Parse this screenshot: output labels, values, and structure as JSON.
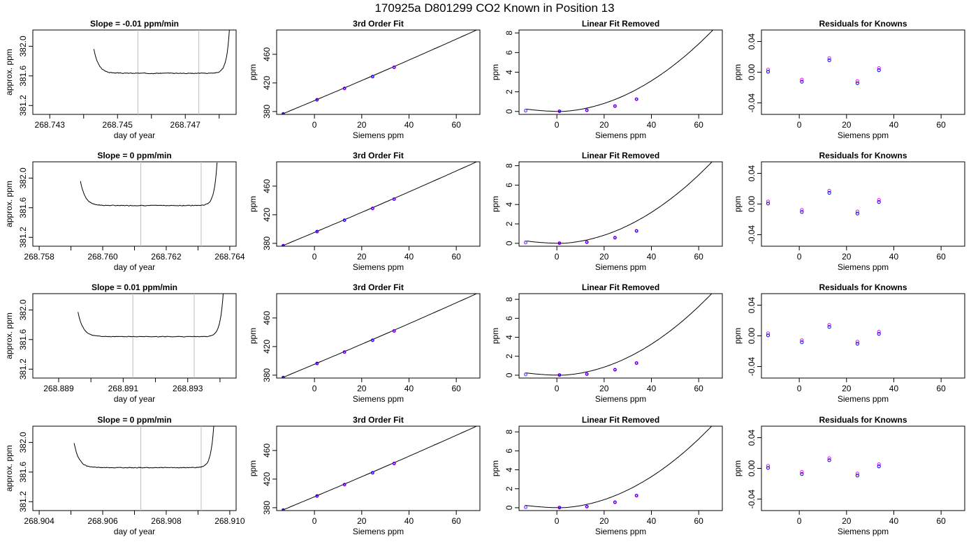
{
  "title": "170925a      D801299   CO2 Known in Position  13",
  "chart_data": [
    {
      "panel": "r1c1",
      "type": "line",
      "title": "Slope =  -0.01  ppm/min",
      "xlabel": "day of year",
      "ylabel": "approx. ppm",
      "xlim": [
        268.7425,
        268.7485
      ],
      "ylim": [
        381.08,
        382.22
      ],
      "xticks": [
        268.743,
        268.745,
        268.747
      ],
      "xtick_minor": [
        268.744,
        268.746,
        268.748
      ],
      "yticks": [
        381.2,
        381.6,
        382.0
      ],
      "xtick_decimals": 3,
      "ytick_decimals": 1,
      "vlines": [
        268.7456,
        268.7474
      ],
      "trace": {
        "t0": 268.7443,
        "t1": 268.7483,
        "base": 381.636,
        "drop": 0.33,
        "rise": 0.58,
        "noise": 0.008,
        "seed": 3
      }
    },
    {
      "panel": "r1c2",
      "type": "line+scatter",
      "title": "3rd Order Fit",
      "xlabel": "Siemens ppm",
      "ylabel": "ppm",
      "xlim": [
        -16,
        70
      ],
      "ylim": [
        376,
        494
      ],
      "xticks": [
        0,
        20,
        40,
        60
      ],
      "yticks": [
        380,
        420,
        460
      ],
      "xtick_decimals": 0,
      "ytick_decimals": 0,
      "curve": {
        "a": 395.3,
        "b": 1.39,
        "c": 0.0007,
        "d": 3e-08,
        "x0": -13.5,
        "x1": 68.5
      },
      "points": {
        "x": [
          -13.2,
          1.1,
          12.7,
          24.6,
          33.7
        ],
        "y": [
          376.8,
          396.5,
          412.4,
          428.9,
          441.9
        ]
      }
    },
    {
      "panel": "r1c3",
      "type": "line+scatter",
      "title": "Linear Fit Removed",
      "xlabel": "Siemens ppm",
      "ylabel": "ppm",
      "xlim": [
        -16,
        70
      ],
      "ylim": [
        -0.3,
        8.3
      ],
      "xticks": [
        0,
        20,
        40,
        60
      ],
      "yticks": [
        0,
        2,
        4,
        6,
        8
      ],
      "xtick_decimals": 0,
      "ytick_decimals": 0,
      "curve": {
        "vertex": 2.5,
        "k": 0.00182,
        "p": 2.0,
        "x0": -13.5,
        "x1": 68.5
      },
      "points": {
        "x": [
          -13.2,
          1.1,
          12.7,
          24.6,
          33.7
        ],
        "y": [
          0.08,
          0.02,
          0.12,
          0.55,
          1.25
        ]
      }
    },
    {
      "panel": "r1c4",
      "type": "scatter",
      "title": "Residuals for Knowns",
      "xlabel": "Siemens ppm",
      "ylabel": "ppm",
      "xlim": [
        -16,
        70
      ],
      "ylim": [
        -0.055,
        0.055
      ],
      "xticks": [
        0,
        20,
        40,
        60
      ],
      "yticks": [
        -0.04,
        0.0,
        0.04
      ],
      "xtick_decimals": 0,
      "ytick_decimals": 2,
      "points": {
        "x": [
          -13.2,
          1.1,
          12.7,
          24.6,
          33.7
        ],
        "y": [
          0.002,
          -0.011,
          0.017,
          -0.013,
          0.004
        ]
      }
    },
    {
      "panel": "r2c1",
      "type": "line",
      "title": "Slope =  0  ppm/min",
      "xlabel": "day of year",
      "ylabel": "approx. ppm",
      "xlim": [
        268.7578,
        268.7642
      ],
      "ylim": [
        381.08,
        382.22
      ],
      "xticks": [
        268.758,
        268.76,
        268.762,
        268.764
      ],
      "xtick_minor": [
        268.759,
        268.761,
        268.763
      ],
      "yticks": [
        381.2,
        381.6,
        382.0
      ],
      "xtick_decimals": 3,
      "ytick_decimals": 1,
      "vlines": [
        268.7612,
        268.7631
      ],
      "trace": {
        "t0": 268.7593,
        "t1": 268.7636,
        "base": 381.63,
        "drop": 0.33,
        "rise": 0.58,
        "noise": 0.008,
        "seed": 7
      }
    },
    {
      "panel": "r2c2",
      "type": "line+scatter",
      "title": "3rd Order Fit",
      "xlabel": "Siemens ppm",
      "ylabel": "ppm",
      "xlim": [
        -16,
        70
      ],
      "ylim": [
        376,
        494
      ],
      "xticks": [
        0,
        20,
        40,
        60
      ],
      "yticks": [
        380,
        420,
        460
      ],
      "xtick_decimals": 0,
      "ytick_decimals": 0,
      "curve": {
        "a": 395.3,
        "b": 1.39,
        "c": 0.0007,
        "d": 3e-08,
        "x0": -13.5,
        "x1": 68.5
      },
      "points": {
        "x": [
          -13.2,
          1.1,
          12.7,
          24.6,
          33.7
        ],
        "y": [
          376.8,
          396.5,
          412.4,
          428.9,
          441.9
        ]
      }
    },
    {
      "panel": "r2c3",
      "type": "line+scatter",
      "title": "Linear Fit Removed",
      "xlabel": "Siemens ppm",
      "ylabel": "ppm",
      "xlim": [
        -16,
        70
      ],
      "ylim": [
        -0.3,
        8.4
      ],
      "xticks": [
        0,
        20,
        40,
        60
      ],
      "yticks": [
        0,
        2,
        4,
        6,
        8
      ],
      "xtick_decimals": 0,
      "ytick_decimals": 0,
      "curve": {
        "vertex": 2.5,
        "k": 0.00187,
        "p": 2.0,
        "x0": -13.5,
        "x1": 68.5
      },
      "points": {
        "x": [
          -13.2,
          1.1,
          12.7,
          24.6,
          33.7
        ],
        "y": [
          0.08,
          0.02,
          0.12,
          0.58,
          1.28
        ]
      }
    },
    {
      "panel": "r2c4",
      "type": "scatter",
      "title": "Residuals for Knowns",
      "xlabel": "Siemens ppm",
      "ylabel": "ppm",
      "xlim": [
        -16,
        70
      ],
      "ylim": [
        -0.055,
        0.055
      ],
      "xticks": [
        0,
        20,
        40,
        60
      ],
      "yticks": [
        -0.04,
        0.0,
        0.04
      ],
      "xtick_decimals": 0,
      "ytick_decimals": 2,
      "points": {
        "x": [
          -13.2,
          1.1,
          12.7,
          24.6,
          33.7
        ],
        "y": [
          0.002,
          -0.009,
          0.016,
          -0.011,
          0.004
        ]
      }
    },
    {
      "panel": "r3c1",
      "type": "line",
      "title": "Slope =  0.01  ppm/min",
      "xlabel": "day of year",
      "ylabel": "approx. ppm",
      "xlim": [
        268.8882,
        268.8945
      ],
      "ylim": [
        381.08,
        382.22
      ],
      "xticks": [
        268.889,
        268.891,
        268.893
      ],
      "xtick_minor": [
        268.89,
        268.892,
        268.894
      ],
      "yticks": [
        381.2,
        381.6,
        382.0
      ],
      "xtick_decimals": 3,
      "ytick_decimals": 1,
      "vlines": [
        268.8913,
        268.8932
      ],
      "trace": {
        "t0": 268.8896,
        "t1": 268.8941,
        "base": 381.64,
        "drop": 0.33,
        "rise": 0.58,
        "noise": 0.007,
        "seed": 11
      }
    },
    {
      "panel": "r3c2",
      "type": "line+scatter",
      "title": "3rd Order Fit",
      "xlabel": "Siemens ppm",
      "ylabel": "ppm",
      "xlim": [
        -16,
        70
      ],
      "ylim": [
        376,
        494
      ],
      "xticks": [
        0,
        20,
        40,
        60
      ],
      "yticks": [
        380,
        420,
        460
      ],
      "xtick_decimals": 0,
      "ytick_decimals": 0,
      "curve": {
        "a": 395.3,
        "b": 1.39,
        "c": 0.0007,
        "d": 3e-08,
        "x0": -13.5,
        "x1": 68.5
      },
      "points": {
        "x": [
          -13.2,
          1.1,
          12.7,
          24.6,
          33.7
        ],
        "y": [
          376.8,
          396.5,
          412.4,
          428.9,
          441.9
        ]
      }
    },
    {
      "panel": "r3c3",
      "type": "line+scatter",
      "title": "Linear Fit Removed",
      "xlabel": "Siemens ppm",
      "ylabel": "ppm",
      "xlim": [
        -16,
        70
      ],
      "ylim": [
        -0.3,
        8.6
      ],
      "xticks": [
        0,
        20,
        40,
        60
      ],
      "yticks": [
        0,
        2,
        4,
        6,
        8
      ],
      "xtick_decimals": 0,
      "ytick_decimals": 0,
      "curve": {
        "vertex": 2.5,
        "k": 0.00193,
        "p": 2.0,
        "x0": -13.5,
        "x1": 68.5
      },
      "points": {
        "x": [
          -13.2,
          1.1,
          12.7,
          24.6,
          33.7
        ],
        "y": [
          0.08,
          0.02,
          0.12,
          0.58,
          1.28
        ]
      }
    },
    {
      "panel": "r3c4",
      "type": "scatter",
      "title": "Residuals for Knowns",
      "xlabel": "Siemens ppm",
      "ylabel": "ppm",
      "xlim": [
        -16,
        70
      ],
      "ylim": [
        -0.055,
        0.055
      ],
      "xticks": [
        0,
        20,
        40,
        60
      ],
      "yticks": [
        -0.04,
        0.0,
        0.04
      ],
      "xtick_decimals": 0,
      "ytick_decimals": 2,
      "points": {
        "x": [
          -13.2,
          1.1,
          12.7,
          24.6,
          33.7
        ],
        "y": [
          0.002,
          -0.007,
          0.013,
          -0.009,
          0.004
        ]
      }
    },
    {
      "panel": "r4c1",
      "type": "line",
      "title": "Slope =  0  ppm/min",
      "xlabel": "day of year",
      "ylabel": "approx. ppm",
      "xlim": [
        268.9038,
        268.9102
      ],
      "ylim": [
        381.08,
        382.22
      ],
      "xticks": [
        268.904,
        268.906,
        268.908,
        268.91
      ],
      "xtick_minor": [
        268.905,
        268.907,
        268.909
      ],
      "yticks": [
        381.2,
        381.6,
        382.0
      ],
      "xtick_decimals": 3,
      "ytick_decimals": 1,
      "vlines": [
        268.9072,
        268.9091
      ],
      "trace": {
        "t0": 268.9051,
        "t1": 268.9095,
        "base": 381.66,
        "drop": 0.33,
        "rise": 0.58,
        "noise": 0.008,
        "seed": 19
      }
    },
    {
      "panel": "r4c2",
      "type": "line+scatter",
      "title": "3rd Order Fit",
      "xlabel": "Siemens ppm",
      "ylabel": "ppm",
      "xlim": [
        -16,
        70
      ],
      "ylim": [
        376,
        494
      ],
      "xticks": [
        0,
        20,
        40,
        60
      ],
      "yticks": [
        380,
        420,
        460
      ],
      "xtick_decimals": 0,
      "ytick_decimals": 0,
      "curve": {
        "a": 395.3,
        "b": 1.39,
        "c": 0.0007,
        "d": 3e-08,
        "x0": -13.5,
        "x1": 68.5
      },
      "points": {
        "x": [
          -13.2,
          1.1,
          12.7,
          24.6,
          33.7
        ],
        "y": [
          376.8,
          396.5,
          412.4,
          428.9,
          441.9
        ]
      }
    },
    {
      "panel": "r4c3",
      "type": "line+scatter",
      "title": "Linear Fit Removed",
      "xlabel": "Siemens ppm",
      "ylabel": "ppm",
      "xlim": [
        -16,
        70
      ],
      "ylim": [
        -0.3,
        8.6
      ],
      "xticks": [
        0,
        20,
        40,
        60
      ],
      "yticks": [
        0,
        2,
        4,
        6,
        8
      ],
      "xtick_decimals": 0,
      "ytick_decimals": 0,
      "curve": {
        "vertex": 2.5,
        "k": 0.00193,
        "p": 2.0,
        "x0": -13.5,
        "x1": 68.5
      },
      "points": {
        "x": [
          -13.2,
          1.1,
          12.7,
          24.6,
          33.7
        ],
        "y": [
          0.06,
          0.02,
          0.12,
          0.58,
          1.28
        ]
      }
    },
    {
      "panel": "r4c4",
      "type": "scatter",
      "title": "Residuals for Knowns",
      "xlabel": "Siemens ppm",
      "ylabel": "ppm",
      "xlim": [
        -16,
        70
      ],
      "ylim": [
        -0.055,
        0.055
      ],
      "xticks": [
        0,
        20,
        40,
        60
      ],
      "yticks": [
        -0.04,
        0.0,
        0.04
      ],
      "xtick_decimals": 0,
      "ytick_decimals": 2,
      "points": {
        "x": [
          -13.2,
          1.1,
          12.7,
          24.6,
          33.7
        ],
        "y": [
          0.002,
          -0.006,
          0.012,
          -0.008,
          0.004
        ]
      }
    }
  ],
  "colors": {
    "point_primary": "#ff00ff",
    "point_secondary": "#0000ff",
    "point_first": "#00bfff",
    "vline": "#bebebe",
    "line": "#000000"
  }
}
